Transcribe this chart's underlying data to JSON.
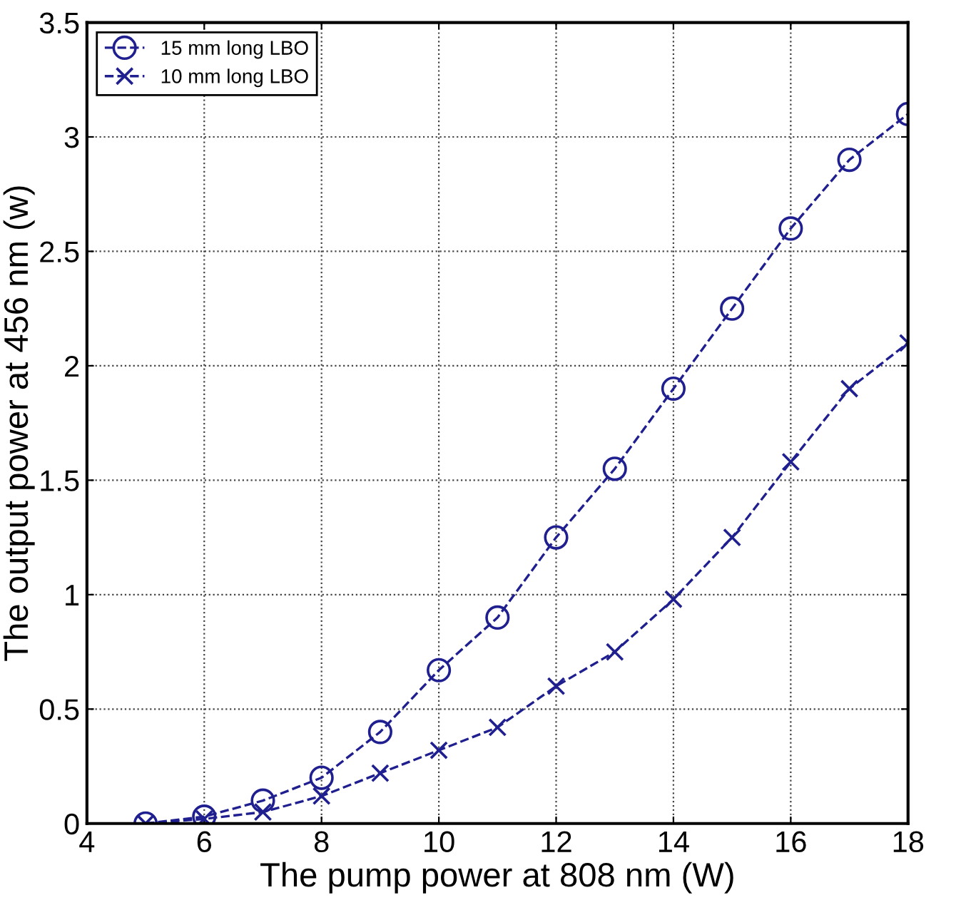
{
  "chart_data": {
    "type": "line",
    "xlabel": "The pump power at 808 nm (W)",
    "ylabel": "The output power at 456 nm (w)",
    "x": [
      5,
      6,
      7,
      8,
      9,
      10,
      11,
      12,
      13,
      14,
      15,
      16,
      17,
      18
    ],
    "series": [
      {
        "name": "15 mm long LBO",
        "color": "#1f1f8f",
        "marker": "circle",
        "values": [
          0,
          0.03,
          0.1,
          0.2,
          0.4,
          0.67,
          0.9,
          1.25,
          1.55,
          1.9,
          2.25,
          2.6,
          2.9,
          3.1
        ]
      },
      {
        "name": "10 mm long LBO",
        "color": "#1f1f8f",
        "marker": "cross",
        "values": [
          0,
          0.02,
          0.05,
          0.12,
          0.22,
          0.32,
          0.42,
          0.6,
          0.75,
          0.98,
          1.25,
          1.58,
          1.9,
          2.1
        ]
      }
    ],
    "line_style": "dashed",
    "grid": true,
    "legend": "top left",
    "xlim": [
      4,
      18
    ],
    "xticks": [
      4,
      6,
      8,
      10,
      12,
      14,
      16,
      18
    ],
    "ylim": [
      0,
      3.5
    ],
    "yticks": [
      0,
      0.5,
      1,
      1.5,
      2,
      2.5,
      3,
      3.5
    ]
  }
}
